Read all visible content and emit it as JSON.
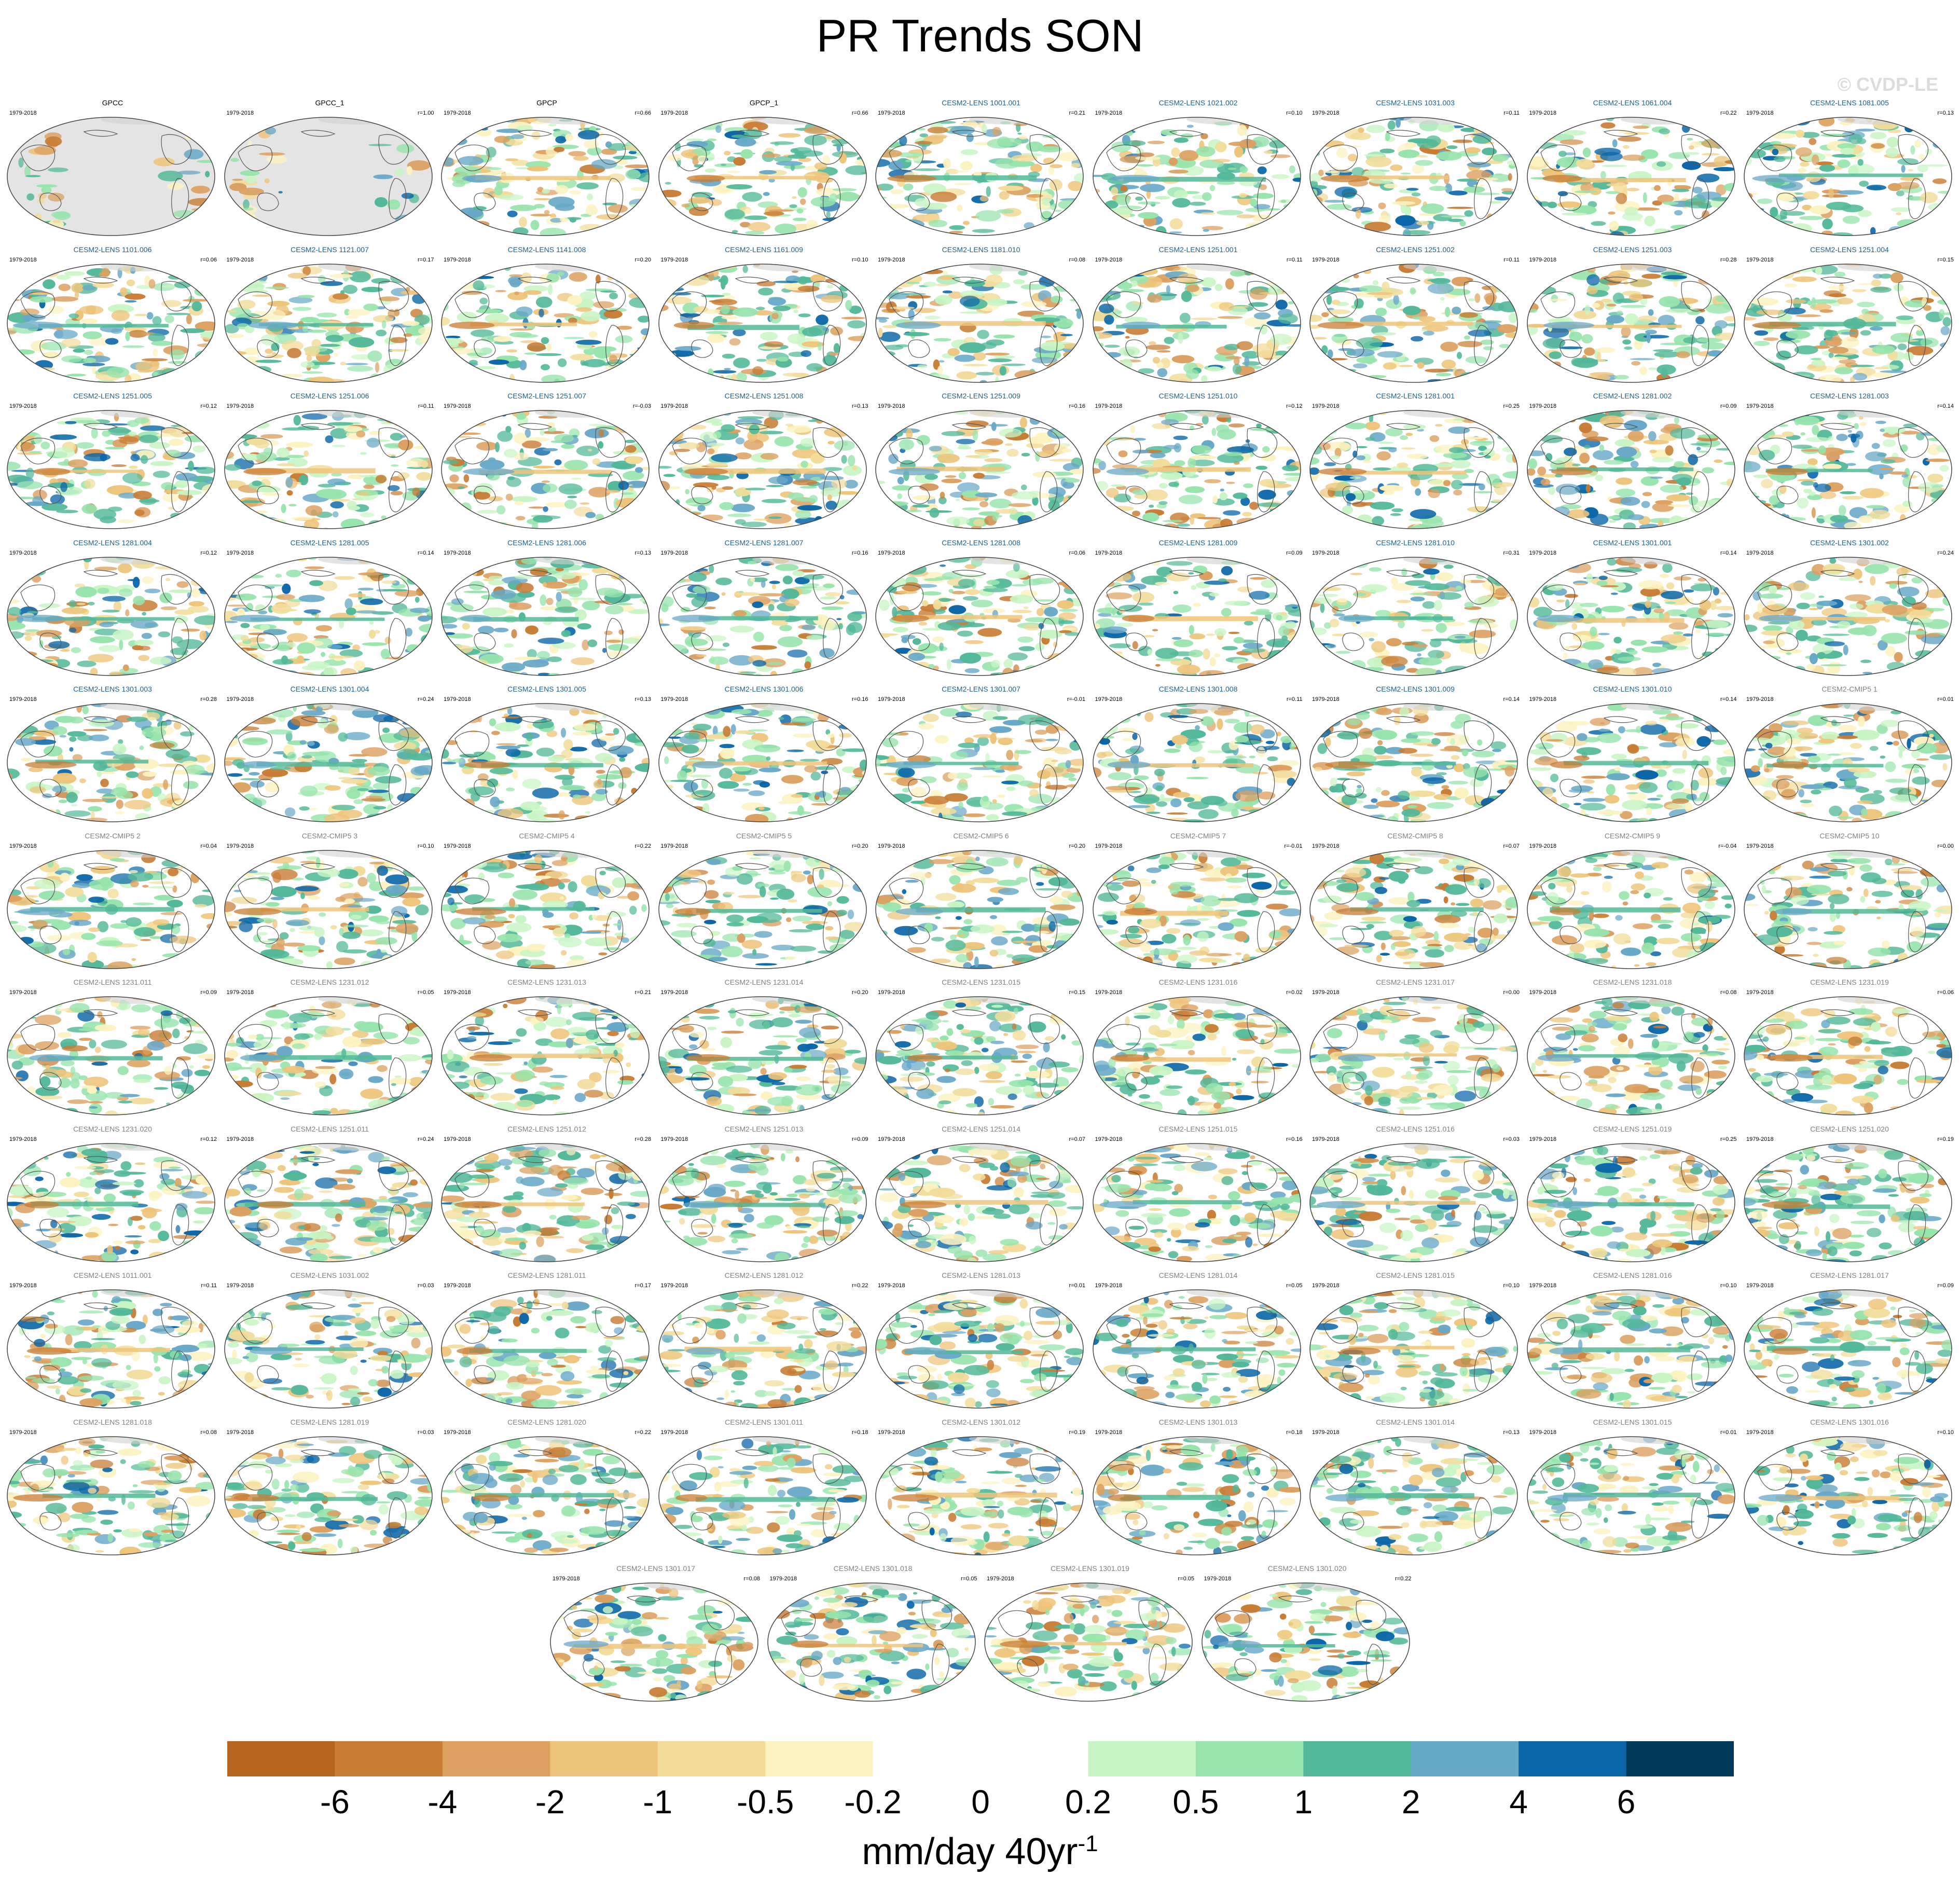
{
  "title": "PR Trends SON",
  "watermark": "© CVDP-LE",
  "chart_data": {
    "type": "heatmap",
    "description_type": "small-multiples map panels",
    "period": "1979-2018",
    "colorbar": {
      "tick_labels": [
        "-6",
        "-4",
        "-2",
        "-1",
        "-0.5",
        "-0.2",
        "0",
        "0.2",
        "0.5",
        "1",
        "2",
        "4",
        "6"
      ],
      "colors": [
        "#b5651d",
        "#c87c34",
        "#dca060",
        "#eec47a",
        "#f3dc9a",
        "#fcf2c0",
        "#ffffff",
        "#ffffff",
        "#c8f5c4",
        "#97e4ac",
        "#52b899",
        "#68a8c8",
        "#0a66a8",
        "#003a5a"
      ],
      "units": "mm/day 40yr",
      "units_sup": "-1"
    },
    "panels": [
      {
        "name": "GPCC",
        "r": "",
        "type": "obs"
      },
      {
        "name": "GPCC_1",
        "r": "r=1.00",
        "type": "obs"
      },
      {
        "name": "GPCP",
        "r": "r=0.66",
        "type": "obs"
      },
      {
        "name": "GPCP_1",
        "r": "r=0.66",
        "type": "obs"
      },
      {
        "name": "CESM2-LENS 1001.001",
        "r": "r=0.21",
        "type": "lens"
      },
      {
        "name": "CESM2-LENS 1021.002",
        "r": "r=0.10",
        "type": "lens"
      },
      {
        "name": "CESM2-LENS 1031.003",
        "r": "r=0.11",
        "type": "lens"
      },
      {
        "name": "CESM2-LENS 1061.004",
        "r": "r=0.22",
        "type": "lens"
      },
      {
        "name": "CESM2-LENS 1081.005",
        "r": "r=0.13",
        "type": "lens"
      },
      {
        "name": "CESM2-LENS 1101.006",
        "r": "r=0.06",
        "type": "lens"
      },
      {
        "name": "CESM2-LENS 1121.007",
        "r": "r=0.17",
        "type": "lens"
      },
      {
        "name": "CESM2-LENS 1141.008",
        "r": "r=0.20",
        "type": "lens"
      },
      {
        "name": "CESM2-LENS 1161.009",
        "r": "r=0.10",
        "type": "lens"
      },
      {
        "name": "CESM2-LENS 1181.010",
        "r": "r=0.08",
        "type": "lens"
      },
      {
        "name": "CESM2-LENS 1251.001",
        "r": "r=0.11",
        "type": "lens"
      },
      {
        "name": "CESM2-LENS 1251.002",
        "r": "r=0.11",
        "type": "lens"
      },
      {
        "name": "CESM2-LENS 1251.003",
        "r": "r=0.28",
        "type": "lens"
      },
      {
        "name": "CESM2-LENS 1251.004",
        "r": "r=0.15",
        "type": "lens"
      },
      {
        "name": "CESM2-LENS 1251.005",
        "r": "r=0.12",
        "type": "lens"
      },
      {
        "name": "CESM2-LENS 1251.006",
        "r": "r=0.11",
        "type": "lens"
      },
      {
        "name": "CESM2-LENS 1251.007",
        "r": "r=-0.03",
        "type": "lens"
      },
      {
        "name": "CESM2-LENS 1251.008",
        "r": "r=0.13",
        "type": "lens"
      },
      {
        "name": "CESM2-LENS 1251.009",
        "r": "r=0.16",
        "type": "lens"
      },
      {
        "name": "CESM2-LENS 1251.010",
        "r": "r=0.12",
        "type": "lens"
      },
      {
        "name": "CESM2-LENS 1281.001",
        "r": "r=0.25",
        "type": "lens"
      },
      {
        "name": "CESM2-LENS 1281.002",
        "r": "r=0.09",
        "type": "lens"
      },
      {
        "name": "CESM2-LENS 1281.003",
        "r": "r=0.14",
        "type": "lens"
      },
      {
        "name": "CESM2-LENS 1281.004",
        "r": "r=0.12",
        "type": "lens"
      },
      {
        "name": "CESM2-LENS 1281.005",
        "r": "r=0.14",
        "type": "lens"
      },
      {
        "name": "CESM2-LENS 1281.006",
        "r": "r=0.13",
        "type": "lens"
      },
      {
        "name": "CESM2-LENS 1281.007",
        "r": "r=0.16",
        "type": "lens"
      },
      {
        "name": "CESM2-LENS 1281.008",
        "r": "r=0.06",
        "type": "lens"
      },
      {
        "name": "CESM2-LENS 1281.009",
        "r": "r=0.09",
        "type": "lens"
      },
      {
        "name": "CESM2-LENS 1281.010",
        "r": "r=0.31",
        "type": "lens"
      },
      {
        "name": "CESM2-LENS 1301.001",
        "r": "r=0.14",
        "type": "lens"
      },
      {
        "name": "CESM2-LENS 1301.002",
        "r": "r=0.24",
        "type": "lens"
      },
      {
        "name": "CESM2-LENS 1301.003",
        "r": "r=0.28",
        "type": "lens"
      },
      {
        "name": "CESM2-LENS 1301.004",
        "r": "r=0.24",
        "type": "lens"
      },
      {
        "name": "CESM2-LENS 1301.005",
        "r": "r=0.13",
        "type": "lens"
      },
      {
        "name": "CESM2-LENS 1301.006",
        "r": "r=0.16",
        "type": "lens"
      },
      {
        "name": "CESM2-LENS 1301.007",
        "r": "r=-0.01",
        "type": "lens"
      },
      {
        "name": "CESM2-LENS 1301.008",
        "r": "r=0.11",
        "type": "lens"
      },
      {
        "name": "CESM2-LENS 1301.009",
        "r": "r=0.14",
        "type": "lens"
      },
      {
        "name": "CESM2-LENS 1301.010",
        "r": "r=0.14",
        "type": "lens"
      },
      {
        "name": "CESM2-CMIP5 1",
        "r": "r=0.01",
        "type": "other"
      },
      {
        "name": "CESM2-CMIP5 2",
        "r": "r=0.04",
        "type": "other"
      },
      {
        "name": "CESM2-CMIP5 3",
        "r": "r=0.10",
        "type": "other"
      },
      {
        "name": "CESM2-CMIP5 4",
        "r": "r=0.22",
        "type": "other"
      },
      {
        "name": "CESM2-CMIP5 5",
        "r": "r=0.20",
        "type": "other"
      },
      {
        "name": "CESM2-CMIP5 6",
        "r": "r=0.20",
        "type": "other"
      },
      {
        "name": "CESM2-CMIP5 7",
        "r": "r=-0.01",
        "type": "other"
      },
      {
        "name": "CESM2-CMIP5 8",
        "r": "r=0.07",
        "type": "other"
      },
      {
        "name": "CESM2-CMIP5 9",
        "r": "r=-0.04",
        "type": "other"
      },
      {
        "name": "CESM2-CMIP5 10",
        "r": "r=0.00",
        "type": "other"
      },
      {
        "name": "CESM2-LENS 1231.011",
        "r": "r=0.09",
        "type": "other"
      },
      {
        "name": "CESM2-LENS 1231.012",
        "r": "r=0.05",
        "type": "other"
      },
      {
        "name": "CESM2-LENS 1231.013",
        "r": "r=0.21",
        "type": "other"
      },
      {
        "name": "CESM2-LENS 1231.014",
        "r": "r=0.20",
        "type": "other"
      },
      {
        "name": "CESM2-LENS 1231.015",
        "r": "r=0.15",
        "type": "other"
      },
      {
        "name": "CESM2-LENS 1231.016",
        "r": "r=0.02",
        "type": "other"
      },
      {
        "name": "CESM2-LENS 1231.017",
        "r": "r=0.00",
        "type": "other"
      },
      {
        "name": "CESM2-LENS 1231.018",
        "r": "r=0.08",
        "type": "other"
      },
      {
        "name": "CESM2-LENS 1231.019",
        "r": "r=0.06",
        "type": "other"
      },
      {
        "name": "CESM2-LENS 1231.020",
        "r": "r=0.12",
        "type": "other"
      },
      {
        "name": "CESM2-LENS 1251.011",
        "r": "r=0.24",
        "type": "other"
      },
      {
        "name": "CESM2-LENS 1251.012",
        "r": "r=0.28",
        "type": "other"
      },
      {
        "name": "CESM2-LENS 1251.013",
        "r": "r=0.09",
        "type": "other"
      },
      {
        "name": "CESM2-LENS 1251.014",
        "r": "r=0.07",
        "type": "other"
      },
      {
        "name": "CESM2-LENS 1251.015",
        "r": "r=0.16",
        "type": "other"
      },
      {
        "name": "CESM2-LENS 1251.016",
        "r": "r=0.03",
        "type": "other"
      },
      {
        "name": "CESM2-LENS 1251.019",
        "r": "r=0.25",
        "type": "other"
      },
      {
        "name": "CESM2-LENS 1251.020",
        "r": "r=0.19",
        "type": "other"
      },
      {
        "name": "CESM2-LENS 1011.001",
        "r": "r=0.11",
        "type": "other"
      },
      {
        "name": "CESM2-LENS 1031.002",
        "r": "r=0.03",
        "type": "other"
      },
      {
        "name": "CESM2-LENS 1281.011",
        "r": "r=0.17",
        "type": "other"
      },
      {
        "name": "CESM2-LENS 1281.012",
        "r": "r=0.22",
        "type": "other"
      },
      {
        "name": "CESM2-LENS 1281.013",
        "r": "r=0.01",
        "type": "other"
      },
      {
        "name": "CESM2-LENS 1281.014",
        "r": "r=0.05",
        "type": "other"
      },
      {
        "name": "CESM2-LENS 1281.015",
        "r": "r=0.10",
        "type": "other"
      },
      {
        "name": "CESM2-LENS 1281.016",
        "r": "r=0.10",
        "type": "other"
      },
      {
        "name": "CESM2-LENS 1281.017",
        "r": "r=0.09",
        "type": "other"
      },
      {
        "name": "CESM2-LENS 1281.018",
        "r": "r=0.08",
        "type": "other"
      },
      {
        "name": "CESM2-LENS 1281.019",
        "r": "r=0.03",
        "type": "other"
      },
      {
        "name": "CESM2-LENS 1281.020",
        "r": "r=0.22",
        "type": "other"
      },
      {
        "name": "CESM2-LENS 1301.011",
        "r": "r=0.18",
        "type": "other"
      },
      {
        "name": "CESM2-LENS 1301.012",
        "r": "r=0.19",
        "type": "other"
      },
      {
        "name": "CESM2-LENS 1301.013",
        "r": "r=0.18",
        "type": "other"
      },
      {
        "name": "CESM2-LENS 1301.014",
        "r": "r=0.13",
        "type": "other"
      },
      {
        "name": "CESM2-LENS 1301.015",
        "r": "r=0.01",
        "type": "other"
      },
      {
        "name": "CESM2-LENS 1301.016",
        "r": "r=0.10",
        "type": "other"
      },
      {
        "name": "CESM2-LENS 1301.017",
        "r": "r=0.08",
        "type": "other"
      },
      {
        "name": "CESM2-LENS 1301.018",
        "r": "r=0.05",
        "type": "other"
      },
      {
        "name": "CESM2-LENS 1301.019",
        "r": "r=0.05",
        "type": "other"
      },
      {
        "name": "CESM2-LENS 1301.020",
        "r": "r=0.22",
        "type": "other"
      }
    ],
    "title_colors": {
      "obs": "#000000",
      "lens": "#1f5f8b",
      "other": "#808080"
    }
  }
}
